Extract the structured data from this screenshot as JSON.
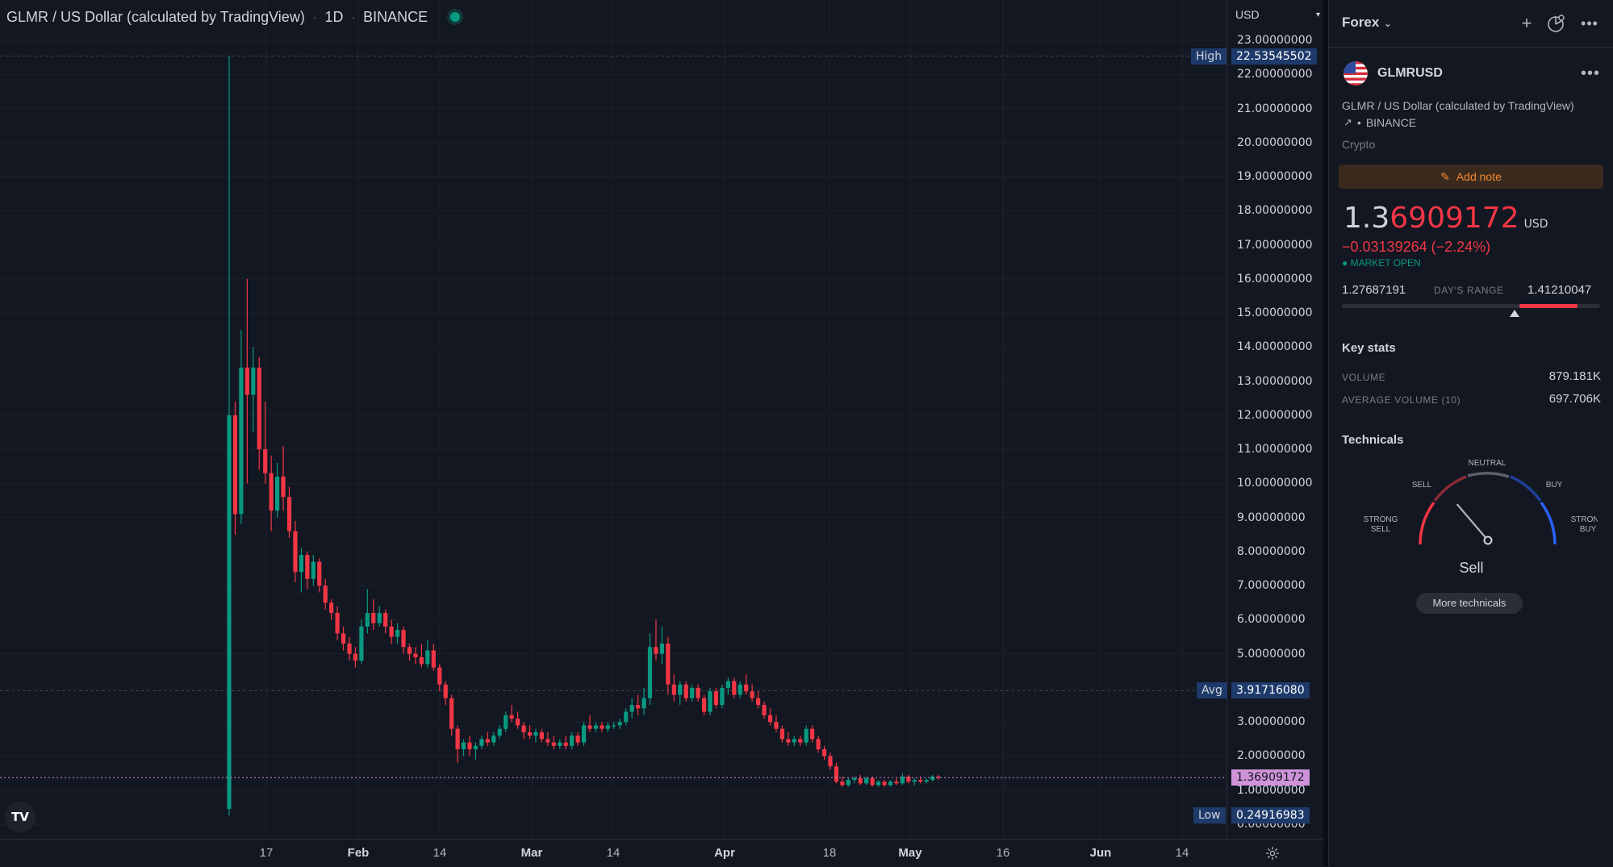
{
  "chart_header": {
    "symbol_name": "GLMR / US Dollar (calculated by TradingView)",
    "interval": "1D",
    "exchange": "BINANCE"
  },
  "price_axis": {
    "currency": "USD",
    "ticks": [
      "23.00000000",
      "22.00000000",
      "21.00000000",
      "20.00000000",
      "19.00000000",
      "18.00000000",
      "17.00000000",
      "16.00000000",
      "15.00000000",
      "14.00000000",
      "13.00000000",
      "12.00000000",
      "11.00000000",
      "10.00000000",
      "9.00000000",
      "8.00000000",
      "7.00000000",
      "6.00000000",
      "5.00000000",
      "4.00000000",
      "3.00000000",
      "2.00000000",
      "1.00000000",
      "0.00000000"
    ],
    "high_label": "High",
    "high_value": "22.53545502",
    "avg_label": "Avg",
    "avg_value": "3.91716080",
    "low_label": "Low",
    "low_value": "0.24916983",
    "current_value": "1.36909172"
  },
  "time_axis": {
    "labels": [
      {
        "text": "17",
        "major": false
      },
      {
        "text": "Feb",
        "major": true
      },
      {
        "text": "14",
        "major": false
      },
      {
        "text": "Mar",
        "major": true
      },
      {
        "text": "14",
        "major": false
      },
      {
        "text": "Apr",
        "major": true
      },
      {
        "text": "18",
        "major": false
      },
      {
        "text": "May",
        "major": true
      },
      {
        "text": "16",
        "major": false
      },
      {
        "text": "Jun",
        "major": true
      },
      {
        "text": "14",
        "major": false
      }
    ]
  },
  "logo_text": "TV",
  "panel": {
    "watchlist_title": "Forex",
    "symbol_ticker": "GLMRUSD",
    "symbol_description": "GLMR / US Dollar (calculated by TradingView)",
    "exchange": "BINANCE",
    "category": "Crypto",
    "add_note_label": "Add note",
    "price_part1": "1.3",
    "price_part2": "6909172",
    "price_currency": "USD",
    "price_change": "−0.03139264 (−2.24%)",
    "market_status": "MARKET OPEN",
    "days_range_low": "1.27687191",
    "days_range_label": "DAY'S RANGE",
    "days_range_high": "1.41210047",
    "key_stats_title": "Key stats",
    "volume_label": "VOLUME",
    "volume_value": "879.181K",
    "avg_volume_label": "AVERAGE VOLUME (10)",
    "avg_volume_value": "697.706K",
    "technicals_title": "Technicals",
    "gauge_labels": {
      "strong_sell_1": "STRONG",
      "strong_sell_2": "SELL",
      "sell": "SELL",
      "neutral": "NEUTRAL",
      "buy": "BUY",
      "strong_buy_1": "STRONG",
      "strong_buy_2": "BUY"
    },
    "gauge_result": "Sell",
    "more_technicals_label": "More technicals"
  },
  "colors": {
    "background": "#131722",
    "up": "#089981",
    "down": "#f23645",
    "text": "#d1d4dc",
    "accent_orange": "#f6882d",
    "current_price_tag": "#ce93d8"
  },
  "chart_data": {
    "type": "candlestick",
    "ylim": [
      0,
      23
    ],
    "candles": [
      [
        0.45,
        22.54,
        0.25,
        12.0
      ],
      [
        12.0,
        12.4,
        8.5,
        9.1
      ],
      [
        9.1,
        14.5,
        8.8,
        13.4
      ],
      [
        13.4,
        16.0,
        10.0,
        12.6
      ],
      [
        12.6,
        14.0,
        11.5,
        13.4
      ],
      [
        13.4,
        13.7,
        10.4,
        11.0
      ],
      [
        11.0,
        12.4,
        10.0,
        10.3
      ],
      [
        10.3,
        10.8,
        8.6,
        9.2
      ],
      [
        9.2,
        10.6,
        9.0,
        10.2
      ],
      [
        10.2,
        11.1,
        9.2,
        9.6
      ],
      [
        9.6,
        9.9,
        8.4,
        8.6
      ],
      [
        8.6,
        8.9,
        7.1,
        7.4
      ],
      [
        7.4,
        8.1,
        6.8,
        7.9
      ],
      [
        7.9,
        8.0,
        6.9,
        7.2
      ],
      [
        7.2,
        7.9,
        7.0,
        7.7
      ],
      [
        7.7,
        7.8,
        6.8,
        7.0
      ],
      [
        7.0,
        7.2,
        6.3,
        6.5
      ],
      [
        6.5,
        6.6,
        6.0,
        6.2
      ],
      [
        6.2,
        6.4,
        5.4,
        5.6
      ],
      [
        5.6,
        5.8,
        5.1,
        5.3
      ],
      [
        5.3,
        5.5,
        4.8,
        5.0
      ],
      [
        5.0,
        5.2,
        4.6,
        4.8
      ],
      [
        4.8,
        6.0,
        4.7,
        5.8
      ],
      [
        5.8,
        6.9,
        5.6,
        6.2
      ],
      [
        6.2,
        6.6,
        5.7,
        5.9
      ],
      [
        5.9,
        6.4,
        5.8,
        6.2
      ],
      [
        6.2,
        6.3,
        5.6,
        5.8
      ],
      [
        5.8,
        6.0,
        5.3,
        5.5
      ],
      [
        5.5,
        5.9,
        5.3,
        5.7
      ],
      [
        5.7,
        5.8,
        5.0,
        5.2
      ],
      [
        5.2,
        5.3,
        4.8,
        5.0
      ],
      [
        5.0,
        5.2,
        4.7,
        4.9
      ],
      [
        4.9,
        5.3,
        4.6,
        4.7
      ],
      [
        4.7,
        5.4,
        4.6,
        5.1
      ],
      [
        5.1,
        5.3,
        4.5,
        4.6
      ],
      [
        4.6,
        4.7,
        3.9,
        4.1
      ],
      [
        4.1,
        4.2,
        3.5,
        3.7
      ],
      [
        3.7,
        3.8,
        2.6,
        2.8
      ],
      [
        2.8,
        2.9,
        1.8,
        2.2
      ],
      [
        2.2,
        2.5,
        2.0,
        2.4
      ],
      [
        2.4,
        2.6,
        2.0,
        2.2
      ],
      [
        2.2,
        2.4,
        1.9,
        2.3
      ],
      [
        2.3,
        2.6,
        2.2,
        2.5
      ],
      [
        2.5,
        2.7,
        2.3,
        2.4
      ],
      [
        2.4,
        2.7,
        2.3,
        2.6
      ],
      [
        2.6,
        2.9,
        2.5,
        2.8
      ],
      [
        2.8,
        3.3,
        2.7,
        3.2
      ],
      [
        3.2,
        3.5,
        3.0,
        3.1
      ],
      [
        3.1,
        3.3,
        2.8,
        2.9
      ],
      [
        2.9,
        3.0,
        2.5,
        2.7
      ],
      [
        2.7,
        2.9,
        2.5,
        2.6
      ],
      [
        2.6,
        2.8,
        2.4,
        2.7
      ],
      [
        2.7,
        2.8,
        2.4,
        2.5
      ],
      [
        2.5,
        2.7,
        2.3,
        2.4
      ],
      [
        2.4,
        2.6,
        2.2,
        2.3
      ],
      [
        2.3,
        2.5,
        2.2,
        2.4
      ],
      [
        2.4,
        2.6,
        2.2,
        2.3
      ],
      [
        2.3,
        2.7,
        2.2,
        2.6
      ],
      [
        2.6,
        2.7,
        2.3,
        2.4
      ],
      [
        2.4,
        3.0,
        2.3,
        2.9
      ],
      [
        2.9,
        3.2,
        2.7,
        2.8
      ],
      [
        2.8,
        3.0,
        2.7,
        2.9
      ],
      [
        2.9,
        3.0,
        2.7,
        2.8
      ],
      [
        2.8,
        3.0,
        2.7,
        2.9
      ],
      [
        2.9,
        3.0,
        2.8,
        2.9
      ],
      [
        2.9,
        3.1,
        2.8,
        3.0
      ],
      [
        3.0,
        3.4,
        2.9,
        3.3
      ],
      [
        3.3,
        3.7,
        3.1,
        3.5
      ],
      [
        3.5,
        3.8,
        3.2,
        3.4
      ],
      [
        3.4,
        4.0,
        3.2,
        3.7
      ],
      [
        3.7,
        5.6,
        3.5,
        5.2
      ],
      [
        5.2,
        6.0,
        4.8,
        5.0
      ],
      [
        5.0,
        5.8,
        4.7,
        5.3
      ],
      [
        5.3,
        5.5,
        3.8,
        4.1
      ],
      [
        4.1,
        4.4,
        3.6,
        3.8
      ],
      [
        3.8,
        4.2,
        3.5,
        4.1
      ],
      [
        4.1,
        4.2,
        3.6,
        3.7
      ],
      [
        3.7,
        4.1,
        3.6,
        4.0
      ],
      [
        4.0,
        4.1,
        3.6,
        3.7
      ],
      [
        3.7,
        3.8,
        3.2,
        3.3
      ],
      [
        3.3,
        4.0,
        3.2,
        3.9
      ],
      [
        3.9,
        4.0,
        3.4,
        3.5
      ],
      [
        3.5,
        4.1,
        3.4,
        4.0
      ],
      [
        4.0,
        4.3,
        3.8,
        4.2
      ],
      [
        4.2,
        4.3,
        3.7,
        3.8
      ],
      [
        3.8,
        4.2,
        3.7,
        4.1
      ],
      [
        4.1,
        4.4,
        3.8,
        3.9
      ],
      [
        3.9,
        4.1,
        3.6,
        3.7
      ],
      [
        3.7,
        3.9,
        3.4,
        3.5
      ],
      [
        3.5,
        3.6,
        3.1,
        3.2
      ],
      [
        3.2,
        3.4,
        2.9,
        3.0
      ],
      [
        3.0,
        3.2,
        2.7,
        2.8
      ],
      [
        2.8,
        2.9,
        2.4,
        2.5
      ],
      [
        2.5,
        2.7,
        2.3,
        2.4
      ],
      [
        2.4,
        2.6,
        2.3,
        2.5
      ],
      [
        2.5,
        2.6,
        2.3,
        2.4
      ],
      [
        2.4,
        2.9,
        2.3,
        2.8
      ],
      [
        2.8,
        2.9,
        2.4,
        2.5
      ],
      [
        2.5,
        2.6,
        2.1,
        2.2
      ],
      [
        2.2,
        2.3,
        1.9,
        2.0
      ],
      [
        2.0,
        2.1,
        1.6,
        1.7
      ],
      [
        1.7,
        1.8,
        1.2,
        1.25
      ],
      [
        1.25,
        1.4,
        1.1,
        1.15
      ],
      [
        1.15,
        1.35,
        1.1,
        1.3
      ],
      [
        1.3,
        1.4,
        1.2,
        1.35
      ],
      [
        1.35,
        1.45,
        1.15,
        1.2
      ],
      [
        1.2,
        1.4,
        1.15,
        1.35
      ],
      [
        1.35,
        1.4,
        1.1,
        1.15
      ],
      [
        1.15,
        1.3,
        1.1,
        1.25
      ],
      [
        1.25,
        1.3,
        1.1,
        1.15
      ],
      [
        1.15,
        1.3,
        1.1,
        1.25
      ],
      [
        1.25,
        1.35,
        1.15,
        1.2
      ],
      [
        1.2,
        1.5,
        1.15,
        1.4
      ],
      [
        1.4,
        1.45,
        1.2,
        1.25
      ],
      [
        1.25,
        1.35,
        1.15,
        1.3
      ],
      [
        1.3,
        1.4,
        1.2,
        1.25
      ],
      [
        1.25,
        1.35,
        1.2,
        1.3
      ],
      [
        1.3,
        1.45,
        1.25,
        1.4
      ],
      [
        1.4,
        1.45,
        1.3,
        1.37
      ]
    ],
    "high": 22.53545502,
    "avg": 3.9171608,
    "low": 0.24916983,
    "current": 1.36909172
  },
  "technicals": {
    "needle_value": -0.45
  },
  "days_range_position": 0.67
}
